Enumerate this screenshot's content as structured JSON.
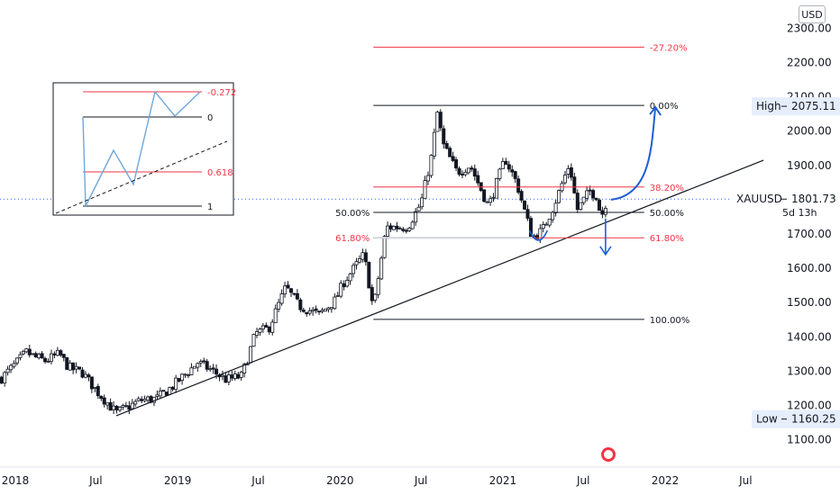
{
  "currency_label": "USD",
  "chart_data": {
    "type": "candlestick",
    "symbol": "XAUUSD",
    "last_price": "1801.73",
    "countdown": "5d 13h",
    "high_label": "High",
    "high_value": "2075.11",
    "low_label": "Low",
    "low_value": "1160.25",
    "x_ticks": [
      "2018",
      "Jul",
      "2019",
      "Jul",
      "2020",
      "Jul",
      "2021",
      "Jul",
      "2022",
      "Jul"
    ],
    "y_ticks": [
      "1100.00",
      "1200.00",
      "1300.00",
      "1400.00",
      "1500.00",
      "1600.00",
      "1700.00",
      "1800.00",
      "1900.00",
      "2000.00",
      "2100.00",
      "2200.00",
      "2300.00"
    ],
    "ylim": [
      1070,
      2330
    ],
    "weekly_path": [
      [
        "2017-12-01",
        1280
      ],
      [
        "2018-01-01",
        1320
      ],
      [
        "2018-01-26",
        1355
      ],
      [
        "2018-02-15",
        1340
      ],
      [
        "2018-03-10",
        1330
      ],
      [
        "2018-04-10",
        1350
      ],
      [
        "2018-05-01",
        1310
      ],
      [
        "2018-06-01",
        1295
      ],
      [
        "2018-07-01",
        1245
      ],
      [
        "2018-08-16",
        1178
      ],
      [
        "2018-09-10",
        1195
      ],
      [
        "2018-10-10",
        1215
      ],
      [
        "2018-11-15",
        1220
      ],
      [
        "2018-12-20",
        1255
      ],
      [
        "2019-02-15",
        1325
      ],
      [
        "2019-03-15",
        1305
      ],
      [
        "2019-04-20",
        1275
      ],
      [
        "2019-05-25",
        1285
      ],
      [
        "2019-06-25",
        1410
      ],
      [
        "2019-07-25",
        1425
      ],
      [
        "2019-09-01",
        1545
      ],
      [
        "2019-10-01",
        1490
      ],
      [
        "2019-11-15",
        1465
      ],
      [
        "2019-12-20",
        1505
      ],
      [
        "2020-01-10",
        1560
      ],
      [
        "2020-02-24",
        1640
      ],
      [
        "2020-03-16",
        1480
      ],
      [
        "2020-04-14",
        1720
      ],
      [
        "2020-06-01",
        1720
      ],
      [
        "2020-07-01",
        1790
      ],
      [
        "2020-07-27",
        1940
      ],
      [
        "2020-08-06",
        2060
      ],
      [
        "2020-08-20",
        1960
      ],
      [
        "2020-09-20",
        1880
      ],
      [
        "2020-10-20",
        1900
      ],
      [
        "2020-11-30",
        1780
      ],
      [
        "2021-01-06",
        1920
      ],
      [
        "2021-02-01",
        1850
      ],
      [
        "2021-03-08",
        1690
      ],
      [
        "2021-03-31",
        1710
      ],
      [
        "2021-04-25",
        1780
      ],
      [
        "2021-05-31",
        1905
      ],
      [
        "2021-06-17",
        1770
      ],
      [
        "2021-07-15",
        1825
      ],
      [
        "2021-08-02",
        1810
      ],
      [
        "2021-08-09",
        1745
      ],
      [
        "2021-08-23",
        1800
      ]
    ],
    "fib_main": {
      "date_start": "2020-03-16",
      "date_end": "2021-11-15",
      "low": 1451,
      "high": 2075.11,
      "levels": [
        {
          "label": "-27.20%",
          "value": 2245,
          "color": "#f23645"
        },
        {
          "label": "0.00%",
          "value": 2075.11,
          "color": "#131722"
        },
        {
          "label": "38.20%",
          "value": 1837,
          "color": "#f23645"
        },
        {
          "label": "50.00%",
          "value": 1763,
          "color": "#131722"
        },
        {
          "label": "61.80%",
          "value": 1689,
          "color": "#f23645"
        },
        {
          "label": "100.00%",
          "value": 1451,
          "color": "#131722"
        }
      ],
      "left_labels": [
        "50.00%",
        "61.80%"
      ]
    },
    "trendline": [
      [
        "2018-08-16",
        1170
      ],
      [
        "2022-08-10",
        1915
      ]
    ],
    "inset": {
      "levels": [
        {
          "label": "-0.272",
          "color": "#f23645"
        },
        {
          "label": "0",
          "color": "#131722"
        },
        {
          "label": "0.618",
          "color": "#f23645"
        },
        {
          "label": "1",
          "color": "#131722"
        }
      ]
    },
    "colors": {
      "up": "#131722",
      "down": "#131722",
      "fill_up": "#ffffff",
      "fill_down": "#131722",
      "price_line": "#2962ff",
      "accent": "#f23645",
      "arrow": "#1e5fd6"
    }
  }
}
